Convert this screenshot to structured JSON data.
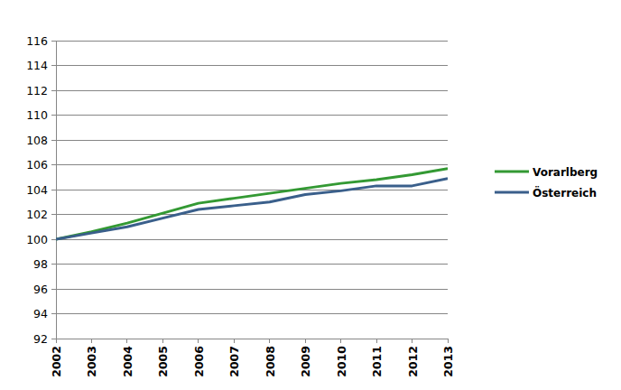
{
  "chart_data": {
    "type": "line",
    "categories": [
      "2002",
      "2003",
      "2004",
      "2005",
      "2006",
      "2007",
      "2008",
      "2009",
      "2010",
      "2011",
      "2012",
      "2013"
    ],
    "series": [
      {
        "name": "Vorarlberg",
        "color": "#339933",
        "values": [
          100,
          100.6,
          101.3,
          102.1,
          102.9,
          103.3,
          103.7,
          104.1,
          104.5,
          104.8,
          105.2,
          105.7
        ]
      },
      {
        "name": "Österreich",
        "color": "#3a5f8b",
        "values": [
          100,
          100.5,
          101.0,
          101.7,
          102.4,
          102.7,
          103.0,
          103.6,
          103.9,
          104.3,
          104.3,
          104.9
        ]
      }
    ],
    "ylim": [
      92,
      116
    ],
    "yticks": [
      92,
      94,
      96,
      98,
      100,
      102,
      104,
      106,
      108,
      110,
      112,
      114,
      116
    ],
    "grid": true,
    "legend": "right"
  }
}
